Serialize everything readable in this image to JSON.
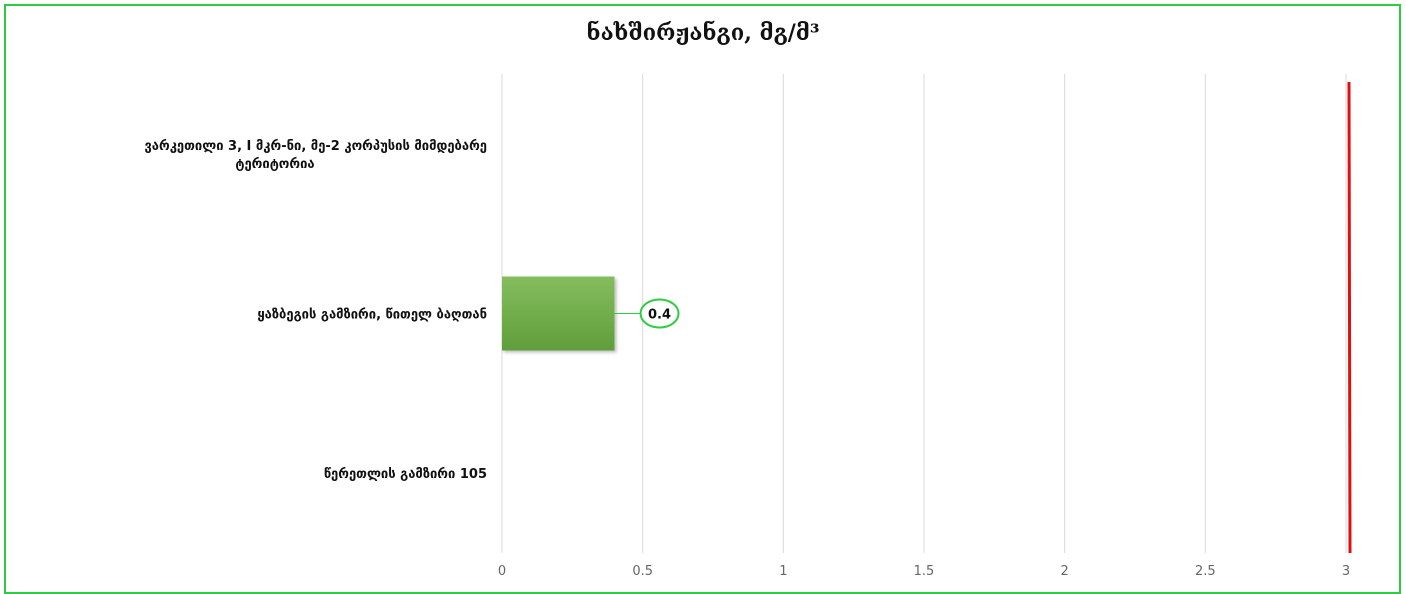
{
  "chart_data": {
    "type": "bar",
    "orientation": "horizontal",
    "title": "ნახშირჟანგი, მგ/მ³",
    "categories": [
      [
        "ვარკეთილი 3, I მკრ-ნი, მე-2 კორპუსის მიმდებარე",
        "ტერიტორია"
      ],
      [
        "ყაზბეგის გამზირი, წითელ ბაღთან"
      ],
      [
        "წერეთლის გამზირი 105"
      ]
    ],
    "values": [
      null,
      0.4,
      null
    ],
    "data_labels": [
      null,
      "0.4",
      null
    ],
    "xlim": [
      0,
      3
    ],
    "x_ticks": [
      "0",
      "0.5",
      "1",
      "1.5",
      "2",
      "2.5",
      "3"
    ],
    "reference_line": {
      "value": 3,
      "color": "#e01010"
    },
    "bar_color": "#6aab47",
    "grid": true,
    "frame_color": "#2ecc40"
  }
}
